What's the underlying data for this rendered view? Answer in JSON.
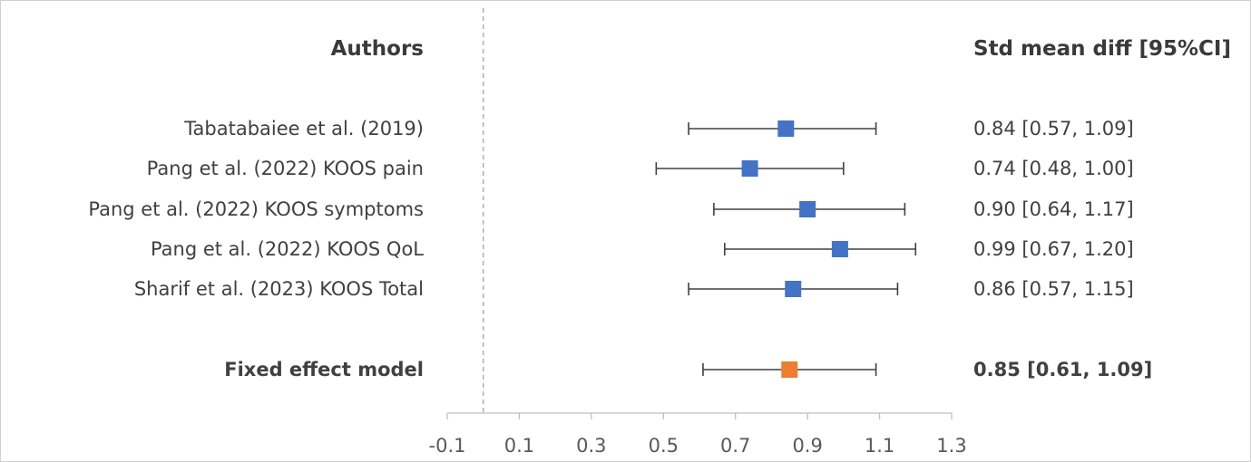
{
  "chart_data": {
    "type": "forest",
    "title": "",
    "xlabel": "",
    "ylabel": "",
    "xlim": [
      -0.1,
      1.3
    ],
    "xticks": [
      "-0.1",
      "0.1",
      "0.3",
      "0.5",
      "0.7",
      "0.9",
      "1.1",
      "1.3"
    ],
    "reference_line": 0,
    "headers": {
      "left": "Authors",
      "right": "Std mean diff [95%CI]"
    },
    "rows": [
      {
        "label": "Tabatabaiee et al. (2019)",
        "estimate": 0.84,
        "lower": 0.57,
        "upper": 1.09,
        "text": "0.84 [0.57, 1.09]",
        "color": "#4472c4",
        "bold": false
      },
      {
        "label": "Pang et al. (2022) KOOS pain",
        "estimate": 0.74,
        "lower": 0.48,
        "upper": 1.0,
        "text": "0.74 [0.48, 1.00]",
        "color": "#4472c4",
        "bold": false
      },
      {
        "label": "Pang et al. (2022) KOOS symptoms",
        "estimate": 0.9,
        "lower": 0.64,
        "upper": 1.17,
        "text": "0.90 [0.64, 1.17]",
        "color": "#4472c4",
        "bold": false
      },
      {
        "label": "Pang et al. (2022) KOOS QoL",
        "estimate": 0.99,
        "lower": 0.67,
        "upper": 1.2,
        "text": "0.99 [0.67, 1.20]",
        "color": "#4472c4",
        "bold": false
      },
      {
        "label": "Sharif et al. (2023) KOOS Total",
        "estimate": 0.86,
        "lower": 0.57,
        "upper": 1.15,
        "text": "0.86 [0.57, 1.15]",
        "color": "#4472c4",
        "bold": false
      },
      {
        "label": "Fixed effect model",
        "estimate": 0.85,
        "lower": 0.61,
        "upper": 1.09,
        "text": "0.85 [0.61, 1.09]",
        "color": "#ed7d31",
        "bold": true
      }
    ]
  }
}
